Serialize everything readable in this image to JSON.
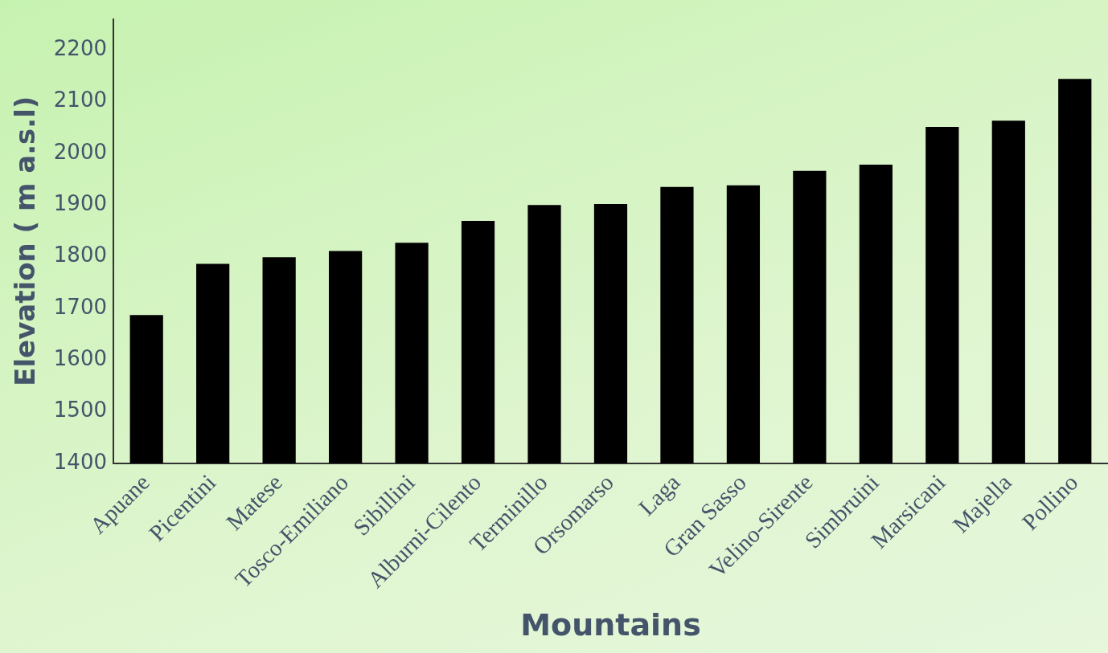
{
  "chart_data": {
    "type": "bar",
    "xlabel": "Mountains",
    "ylabel": "Elevation ( m a.s.l)",
    "categories": [
      "Apuane",
      "Picentini",
      "Matese",
      "Tosco-Emiliano",
      "Sibillini",
      "Alburni-Cilento",
      "Terminillo",
      "Orsomarso",
      "Laga",
      "Gran Sasso",
      "Velino-Sirente",
      "Simbruini",
      "Marsicani",
      "Majella",
      "Pollino"
    ],
    "values": [
      1687,
      1786,
      1799,
      1811,
      1827,
      1869,
      1900,
      1902,
      1935,
      1938,
      1966,
      1978,
      2051,
      2063,
      2144
    ],
    "color": "#000000",
    "ylim": [
      1400,
      2260
    ],
    "yticks": [
      1400,
      1500,
      1600,
      1700,
      1800,
      1900,
      2000,
      2100,
      2200
    ],
    "grid": false,
    "legend": false
  }
}
